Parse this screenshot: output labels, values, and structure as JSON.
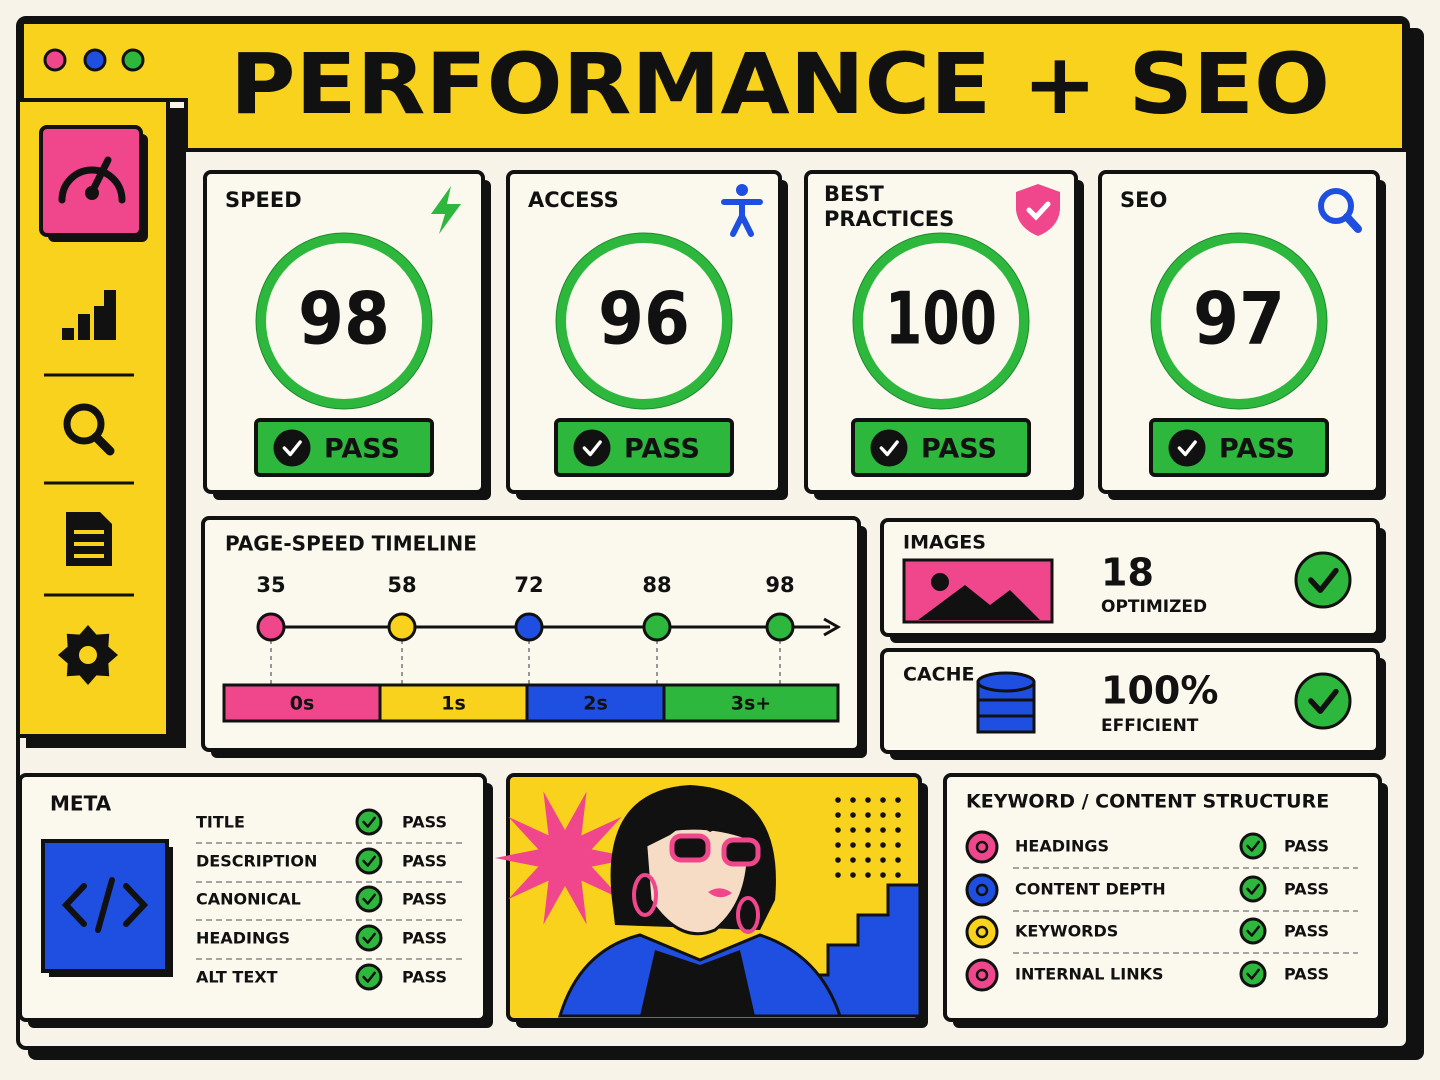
{
  "header": {
    "title": "PERFORMANCE + SEO"
  },
  "scores": [
    {
      "label": "SPEED",
      "score": 98,
      "status": "PASS"
    },
    {
      "label": "ACCESS",
      "score": 96,
      "status": "PASS"
    },
    {
      "label": "BEST PRACTICES",
      "score": 100,
      "status": "PASS"
    },
    {
      "label": "SEO",
      "score": 97,
      "status": "PASS"
    }
  ],
  "timeline": {
    "title": "PAGE-SPEED TIMELINE",
    "points": [
      35,
      58,
      72,
      88,
      98
    ],
    "segments": [
      "0s",
      "1s",
      "2s",
      "3s+"
    ]
  },
  "images": {
    "label": "IMAGES",
    "value": "18",
    "caption": "OPTIMIZED"
  },
  "cache": {
    "label": "CACHE",
    "value": "100%",
    "caption": "EFFICIENT"
  },
  "meta": {
    "title": "META",
    "rows": [
      {
        "label": "TITLE",
        "status": "PASS"
      },
      {
        "label": "DESCRIPTION",
        "status": "PASS"
      },
      {
        "label": "CANONICAL",
        "status": "PASS"
      },
      {
        "label": "HEADINGS",
        "status": "PASS"
      },
      {
        "label": "ALT TEXT",
        "status": "PASS"
      }
    ]
  },
  "keywords": {
    "title": "KEYWORD / CONTENT STRUCTURE",
    "rows": [
      {
        "label": "HEADINGS",
        "status": "PASS"
      },
      {
        "label": "CONTENT DEPTH",
        "status": "PASS"
      },
      {
        "label": "KEYWORDS",
        "status": "PASS"
      },
      {
        "label": "INTERNAL LINKS",
        "status": "PASS"
      }
    ]
  }
}
